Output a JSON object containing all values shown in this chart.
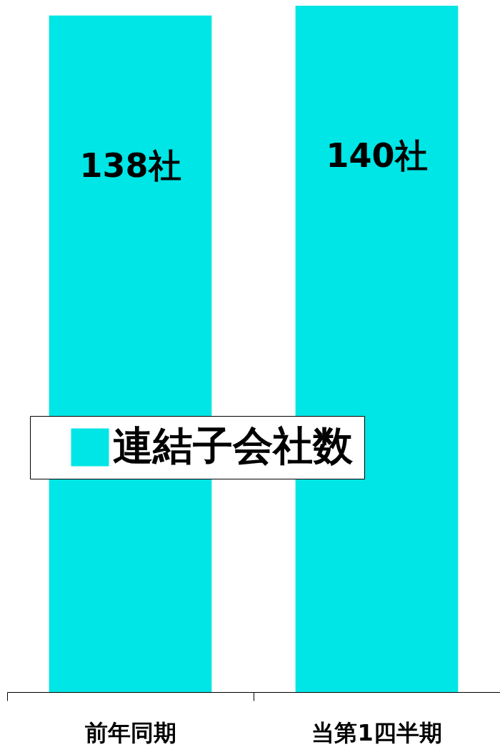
{
  "chart_data": {
    "type": "bar",
    "categories": [
      "前年同期",
      "当第1四半期"
    ],
    "series": [
      {
        "name": "連結子会社数",
        "color": "#00e5e5",
        "values": [
          138,
          140
        ],
        "value_labels": [
          "138社",
          "140社"
        ]
      }
    ],
    "legend": "center"
  }
}
